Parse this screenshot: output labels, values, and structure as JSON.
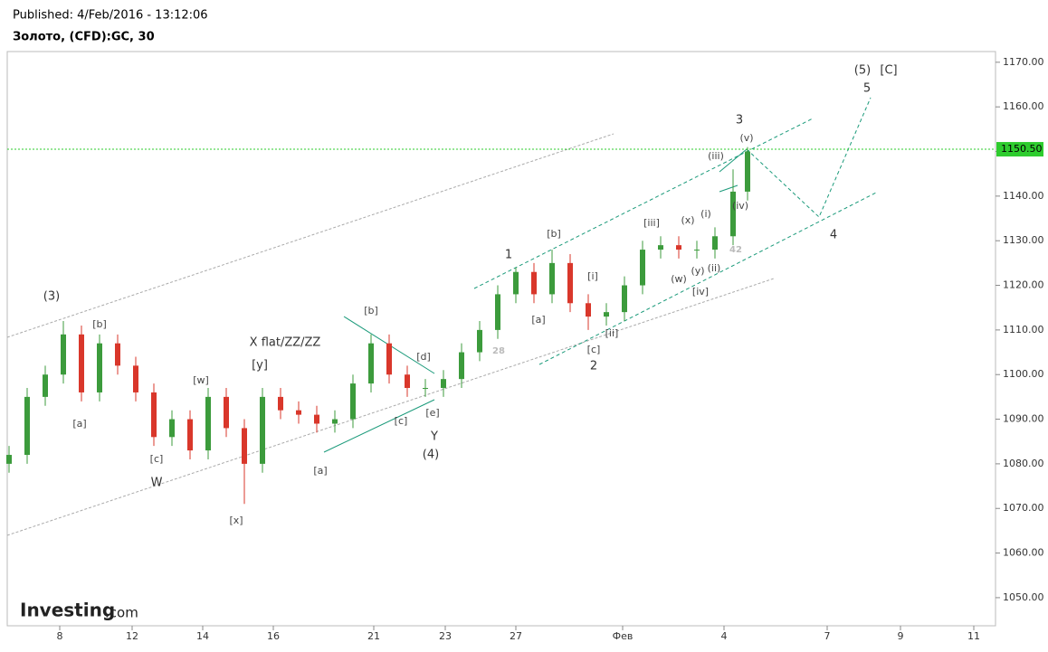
{
  "header": {
    "published": "Published: 4/Feb/2016 - 13:12:06",
    "instrument": "Золото, (CFD):GC, 30",
    "logo": "Investing",
    "logo_suffix": ".com"
  },
  "chart_data": {
    "type": "candlestick",
    "x": [
      -1.4,
      -0.9,
      -0.4,
      0.1,
      0.6,
      1.1,
      1.6,
      2.1,
      2.6,
      3.1,
      3.6,
      4.1,
      4.6,
      5.1,
      5.6,
      6.1,
      6.6,
      7.1,
      7.6,
      8.1,
      8.6,
      9.1,
      9.6,
      10.1,
      10.6,
      11.1,
      11.6,
      12.1,
      12.6,
      13.1,
      13.6,
      14.1,
      14.6,
      15.1,
      15.6,
      16.1,
      16.6,
      17.1,
      17.6,
      18.1,
      18.6,
      19.0
    ],
    "open": [
      1080,
      1082,
      1095,
      1100,
      1109,
      1096,
      1107,
      1102,
      1096,
      1086,
      1090,
      1083,
      1095,
      1088,
      1080,
      1095,
      1092,
      1091,
      1089,
      1090,
      1098,
      1107,
      1100,
      1097,
      1097,
      1099,
      1105,
      1110,
      1118,
      1123,
      1118,
      1125,
      1116,
      1113,
      1114,
      1120,
      1128,
      1129,
      1128,
      1128,
      1131,
      1141
    ],
    "high": [
      1084,
      1097,
      1102,
      1112,
      1111,
      1109,
      1109,
      1104,
      1098,
      1092,
      1092,
      1097,
      1097,
      1090,
      1097,
      1097,
      1094,
      1093,
      1092,
      1100,
      1109,
      1109,
      1102,
      1099,
      1101,
      1107,
      1112,
      1120,
      1124,
      1125,
      1128,
      1127,
      1118,
      1116,
      1122,
      1130,
      1131,
      1131,
      1130,
      1133,
      1146,
      1151
    ],
    "low": [
      1078,
      1080,
      1093,
      1098,
      1094,
      1094,
      1100,
      1094,
      1084,
      1084,
      1081,
      1081,
      1086,
      1071,
      1078,
      1090,
      1089,
      1087,
      1087,
      1088,
      1096,
      1098,
      1095,
      1095,
      1095,
      1097,
      1103,
      1108,
      1116,
      1116,
      1116,
      1114,
      1110,
      1111,
      1112,
      1118,
      1126,
      1126,
      1126,
      1126,
      1129,
      1139
    ],
    "close": [
      1082,
      1095,
      1100,
      1109,
      1096,
      1107,
      1102,
      1096,
      1086,
      1090,
      1083,
      1095,
      1088,
      1080,
      1095,
      1092,
      1091,
      1089,
      1090,
      1098,
      1107,
      1100,
      1097,
      1097,
      1099,
      1105,
      1110,
      1118,
      1123,
      1118,
      1125,
      1116,
      1113,
      1114,
      1120,
      1128,
      1129,
      1128,
      1128,
      1131,
      1141,
      1150
    ],
    "up_color": "#3c9b3c",
    "down_color": "#d9372b",
    "xlim": [
      -1.45,
      25.85
    ],
    "xticks": [
      {
        "value": 0,
        "label": "8"
      },
      {
        "value": 2,
        "label": "12"
      },
      {
        "value": 3.95,
        "label": "14"
      },
      {
        "value": 5.9,
        "label": "16"
      },
      {
        "value": 8.675,
        "label": "21"
      },
      {
        "value": 10.65,
        "label": "23"
      },
      {
        "value": 12.6,
        "label": "27"
      },
      {
        "value": 15.55,
        "label": "Фев"
      },
      {
        "value": 18.35,
        "label": "4"
      },
      {
        "value": 21.2,
        "label": "7"
      },
      {
        "value": 23.225,
        "label": "9"
      },
      {
        "value": 25.25,
        "label": "11"
      }
    ],
    "ylim": [
      1043.7,
      1172.4
    ],
    "yticks": [
      {
        "value": 1050,
        "label": "1050.00"
      },
      {
        "value": 1060,
        "label": "1060.00"
      },
      {
        "value": 1070,
        "label": "1070.00"
      },
      {
        "value": 1080,
        "label": "1080.00"
      },
      {
        "value": 1090,
        "label": "1090.00"
      },
      {
        "value": 1100,
        "label": "1100.00"
      },
      {
        "value": 1110,
        "label": "1110.00"
      },
      {
        "value": 1120,
        "label": "1120.00"
      },
      {
        "value": 1130,
        "label": "1130.00"
      },
      {
        "value": 1140,
        "label": "1140.00"
      },
      {
        "value": 1150,
        "label": "1150.00"
      },
      {
        "value": 1160,
        "label": "1160.00"
      },
      {
        "value": 1170,
        "label": "1170.00"
      }
    ],
    "last_price": {
      "value": 1150.5,
      "label": "1150.50"
    },
    "last_price_color": "#2ecc2e",
    "annotations": [
      "(3)",
      "[b]",
      "[a]",
      "[c]",
      "W",
      "[w]",
      "[x]",
      "[y]",
      "X flat/ZZ/ZZ",
      "[b]",
      "[a]",
      "[c]",
      "[d]",
      "[e]",
      "Y",
      "(4)",
      "28",
      "1",
      "[a]",
      "[b]",
      "[i]",
      "[c]",
      "[ii]",
      "2",
      "[iii]",
      "(x)",
      "(w)",
      "(y)",
      "(ii)",
      "[iv]",
      "42",
      "(i)",
      "(iii)",
      "(iv)",
      "(v)",
      "3",
      "4",
      "5",
      "(5)",
      "[C]"
    ]
  }
}
